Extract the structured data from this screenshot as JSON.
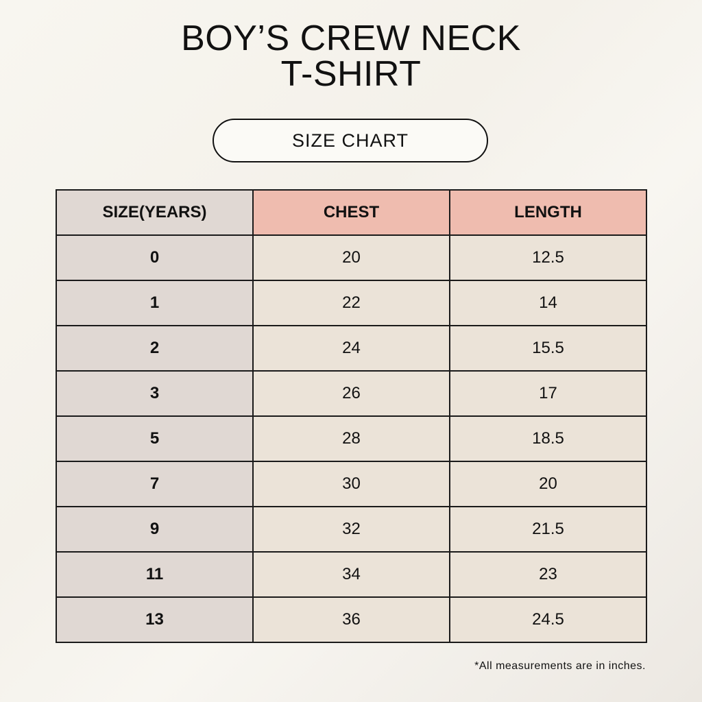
{
  "title_line1": "BOY’S CREW NECK",
  "title_line2": "T-SHIRT",
  "subtitle": "SIZE CHART",
  "table": {
    "headers": [
      "SIZE(YEARS)",
      "CHEST",
      "LENGTH"
    ],
    "rows": [
      [
        "0",
        "20",
        "12.5"
      ],
      [
        "1",
        "22",
        "14"
      ],
      [
        "2",
        "24",
        "15.5"
      ],
      [
        "3",
        "26",
        "17"
      ],
      [
        "5",
        "28",
        "18.5"
      ],
      [
        "7",
        "30",
        "20"
      ],
      [
        "9",
        "32",
        "21.5"
      ],
      [
        "11",
        "34",
        "23"
      ],
      [
        "13",
        "36",
        "24.5"
      ]
    ]
  },
  "note": "*All measurements are in inches.",
  "colors": {
    "size_column": "#e0d8d3",
    "header_accent": "#efbcaf",
    "cell_bg": "#ebe3d8",
    "background": "#f7f5ef"
  }
}
